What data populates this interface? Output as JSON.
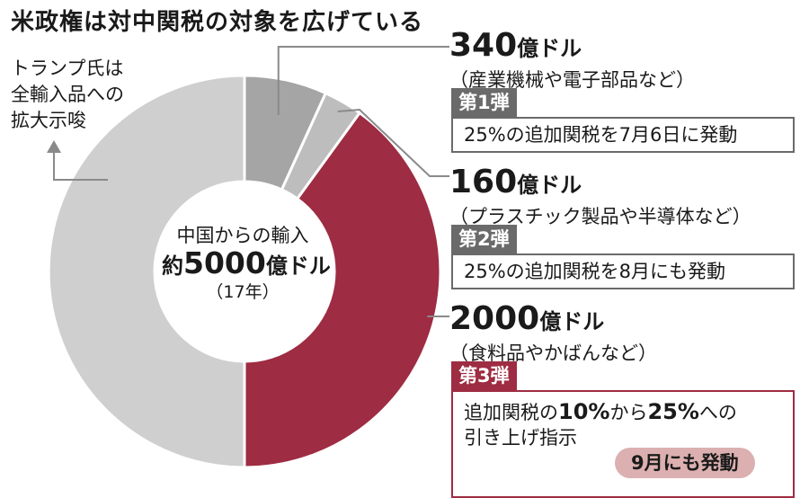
{
  "title": "米政権は対中関税の対象を広げている",
  "side_note": {
    "lines": [
      "トランプ氏は",
      "全輸入品への",
      "拡大示唆"
    ]
  },
  "center": {
    "line1": "中国からの輸入",
    "line2_prefix": "約",
    "line2_value": "5000",
    "line2_unit": "億ドル",
    "line3": "（17年）"
  },
  "annotations": [
    {
      "amount": "340",
      "unit": "億ドル",
      "desc": "（産業機械や電子部品など）",
      "badge": "第1弾",
      "box": "25%の追加関税を7月6日に発動"
    },
    {
      "amount": "160",
      "unit": "億ドル",
      "desc": "（プラスチック製品や半導体など）",
      "badge": "第2弾",
      "box": "25%の追加関税を8月にも発動"
    },
    {
      "amount": "2000",
      "unit": "億ドル",
      "desc": "（食料品やかばんなど）",
      "badge": "第3弾",
      "box_l1_a": "追加関税の",
      "box_l1_b": "10%",
      "box_l1_c": "から",
      "box_l1_d": "25%",
      "box_l1_e": "への",
      "box_l2": "引き上げ指示",
      "pill": "9月にも発動"
    }
  ],
  "colors": {
    "phase1": "#a5a5a5",
    "phase2": "#bdbdbd",
    "phase3": "#9e2c42",
    "rest": "#cfcfcf",
    "badge_gray": "#6a6a6a",
    "badge_red": "#9e2c42",
    "pill": "#dcb0b0",
    "leader": "#8a8a8a"
  },
  "chart_data": {
    "type": "pie",
    "variant": "donut",
    "total": 5000,
    "unit": "億ドル",
    "slices": [
      {
        "name": "第1弾",
        "value": 340
      },
      {
        "name": "第2弾",
        "value": 160
      },
      {
        "name": "第3弾",
        "value": 2000
      },
      {
        "value": 2500
      }
    ]
  }
}
